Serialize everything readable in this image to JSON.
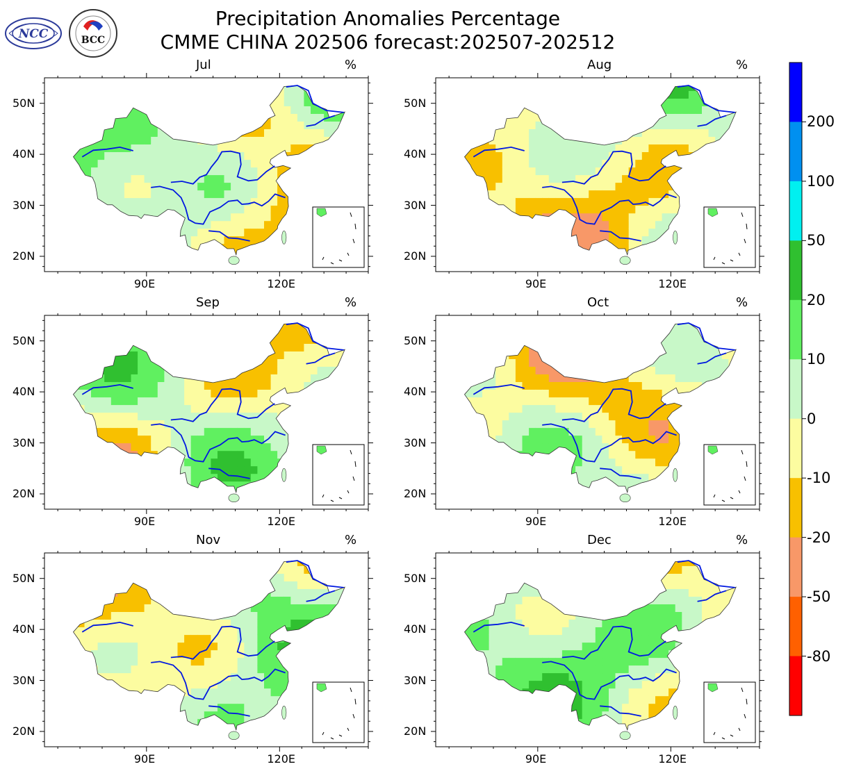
{
  "header": {
    "title_line1": "Precipitation Anomalies Percentage",
    "title_line2": "CMME CHINA 202506 forecast:202507-202512"
  },
  "logos": [
    {
      "name": "ncc-logo",
      "text": "NCC"
    },
    {
      "name": "bcc-logo",
      "text": "BCC"
    }
  ],
  "unit": "%",
  "axes": {
    "lat_labels": [
      "50N",
      "40N",
      "30N",
      "20N"
    ],
    "lon_labels": [
      "90E",
      "120E"
    ]
  },
  "panels": [
    {
      "month": "Jul"
    },
    {
      "month": "Aug"
    },
    {
      "month": "Sep"
    },
    {
      "month": "Oct"
    },
    {
      "month": "Nov"
    },
    {
      "month": "Dec"
    }
  ],
  "colorbar": {
    "labels": [
      "200",
      "100",
      "50",
      "20",
      "10",
      "0",
      "-10",
      "-20",
      "-50",
      "-80"
    ],
    "colors": [
      "#0000ff",
      "#0090f0",
      "#00f0f0",
      "#30c030",
      "#60f060",
      "#c8f8c8",
      "#fcfca0",
      "#f8c000",
      "#f89868",
      "#ff6000",
      "#ff0000"
    ]
  }
}
